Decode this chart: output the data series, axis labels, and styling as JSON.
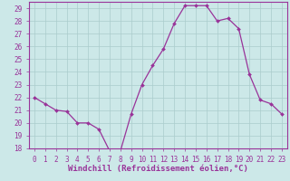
{
  "hours": [
    0,
    1,
    2,
    3,
    4,
    5,
    6,
    7,
    8,
    9,
    10,
    11,
    12,
    13,
    14,
    15,
    16,
    17,
    18,
    19,
    20,
    21,
    22,
    23
  ],
  "values": [
    22.0,
    21.5,
    21.0,
    20.9,
    20.0,
    20.0,
    19.5,
    17.8,
    17.8,
    20.7,
    23.0,
    24.5,
    25.8,
    27.8,
    29.2,
    29.2,
    29.2,
    28.0,
    28.2,
    27.4,
    23.8,
    21.8,
    21.5,
    20.7
  ],
  "line_color": "#993399",
  "marker": "D",
  "marker_size": 2,
  "bg_color": "#cce8e8",
  "grid_color": "#aacccc",
  "xlabel": "Windchill (Refroidissement éolien,°C)",
  "ylim": [
    18,
    29.5
  ],
  "xlim": [
    -0.5,
    23.5
  ],
  "yticks": [
    18,
    19,
    20,
    21,
    22,
    23,
    24,
    25,
    26,
    27,
    28,
    29
  ],
  "xticks": [
    0,
    1,
    2,
    3,
    4,
    5,
    6,
    7,
    8,
    9,
    10,
    11,
    12,
    13,
    14,
    15,
    16,
    17,
    18,
    19,
    20,
    21,
    22,
    23
  ],
  "tick_fontsize": 5.5,
  "xlabel_fontsize": 6.5
}
